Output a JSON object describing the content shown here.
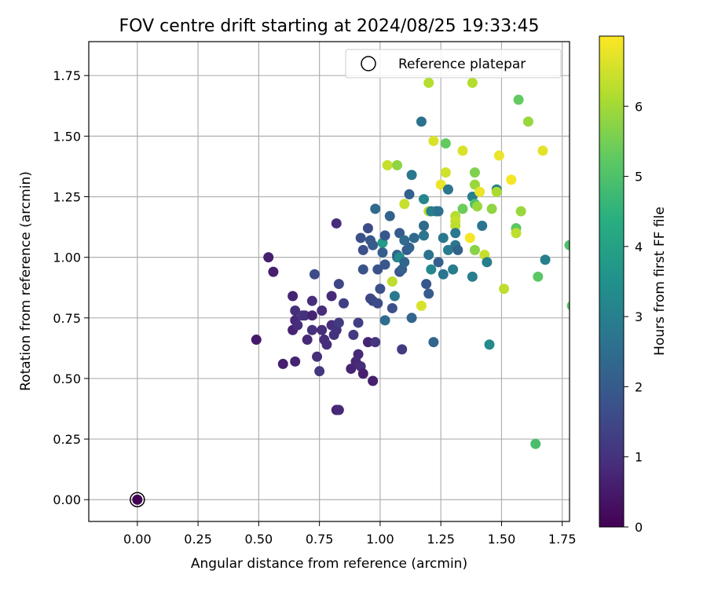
{
  "chart_data": {
    "type": "scatter",
    "title": "FOV centre drift starting at 2024/08/25 19:33:45",
    "xlabel": "Angular distance from reference (arcmin)",
    "ylabel": "Rotation from reference (arcmin)",
    "xlim": [
      -0.2,
      1.78
    ],
    "ylim": [
      -0.09,
      1.89
    ],
    "xticks": [
      "0.00",
      "0.25",
      "0.50",
      "0.75",
      "1.00",
      "1.25",
      "1.50",
      "1.75"
    ],
    "yticks": [
      "0.00",
      "0.25",
      "0.50",
      "0.75",
      "1.00",
      "1.25",
      "1.50",
      "1.75"
    ],
    "grid": true,
    "legend": {
      "placement": "top-right",
      "entries": [
        "Reference platepar"
      ]
    },
    "reference_point": {
      "x": 0.0,
      "y": 0.0
    },
    "colorbar": {
      "label": "Hours from first FF file",
      "min": 0,
      "max": 7.0,
      "ticks": [
        "0",
        "1",
        "2",
        "3",
        "4",
        "5",
        "6"
      ],
      "colormap": "viridis"
    },
    "points": [
      {
        "x": 0.49,
        "y": 0.66,
        "c": 0.5
      },
      {
        "x": 0.54,
        "y": 1.0,
        "c": 0.6
      },
      {
        "x": 0.56,
        "y": 0.94,
        "c": 0.6
      },
      {
        "x": 0.6,
        "y": 0.56,
        "c": 0.6
      },
      {
        "x": 0.64,
        "y": 0.84,
        "c": 0.7
      },
      {
        "x": 0.64,
        "y": 0.7,
        "c": 0.7
      },
      {
        "x": 0.65,
        "y": 0.57,
        "c": 0.7
      },
      {
        "x": 0.65,
        "y": 0.78,
        "c": 0.9
      },
      {
        "x": 0.65,
        "y": 0.74,
        "c": 0.8
      },
      {
        "x": 0.66,
        "y": 0.72,
        "c": 0.9
      },
      {
        "x": 0.68,
        "y": 0.76,
        "c": 1.1
      },
      {
        "x": 0.69,
        "y": 0.76,
        "c": 1.0
      },
      {
        "x": 0.7,
        "y": 0.66,
        "c": 0.8
      },
      {
        "x": 0.72,
        "y": 0.82,
        "c": 0.9
      },
      {
        "x": 0.72,
        "y": 0.7,
        "c": 1.0
      },
      {
        "x": 0.72,
        "y": 0.76,
        "c": 0.7
      },
      {
        "x": 0.73,
        "y": 0.93,
        "c": 1.6
      },
      {
        "x": 0.74,
        "y": 0.59,
        "c": 0.9
      },
      {
        "x": 0.75,
        "y": 0.53,
        "c": 1.1
      },
      {
        "x": 0.76,
        "y": 0.7,
        "c": 0.9
      },
      {
        "x": 0.76,
        "y": 0.78,
        "c": 0.9
      },
      {
        "x": 0.77,
        "y": 0.66,
        "c": 0.9
      },
      {
        "x": 0.78,
        "y": 0.64,
        "c": 0.9
      },
      {
        "x": 0.8,
        "y": 0.72,
        "c": 0.9
      },
      {
        "x": 0.8,
        "y": 0.84,
        "c": 0.8
      },
      {
        "x": 0.81,
        "y": 0.68,
        "c": 1.0
      },
      {
        "x": 0.82,
        "y": 0.37,
        "c": 0.7
      },
      {
        "x": 0.82,
        "y": 0.7,
        "c": 1.0
      },
      {
        "x": 0.82,
        "y": 1.14,
        "c": 0.9
      },
      {
        "x": 0.83,
        "y": 0.73,
        "c": 1.2
      },
      {
        "x": 0.83,
        "y": 0.37,
        "c": 0.8
      },
      {
        "x": 0.83,
        "y": 0.89,
        "c": 1.5
      },
      {
        "x": 0.85,
        "y": 0.81,
        "c": 1.3
      },
      {
        "x": 0.88,
        "y": 0.54,
        "c": 0.7
      },
      {
        "x": 0.89,
        "y": 0.68,
        "c": 1.2
      },
      {
        "x": 0.9,
        "y": 0.57,
        "c": 0.8
      },
      {
        "x": 0.91,
        "y": 0.6,
        "c": 0.8
      },
      {
        "x": 0.91,
        "y": 0.73,
        "c": 1.3
      },
      {
        "x": 0.92,
        "y": 1.08,
        "c": 1.7
      },
      {
        "x": 0.92,
        "y": 0.55,
        "c": 0.9
      },
      {
        "x": 0.93,
        "y": 0.52,
        "c": 0.6
      },
      {
        "x": 0.93,
        "y": 0.95,
        "c": 1.8
      },
      {
        "x": 0.93,
        "y": 1.03,
        "c": 1.7
      },
      {
        "x": 0.95,
        "y": 0.65,
        "c": 0.7
      },
      {
        "x": 0.95,
        "y": 1.12,
        "c": 1.6
      },
      {
        "x": 0.96,
        "y": 1.07,
        "c": 1.9
      },
      {
        "x": 0.96,
        "y": 0.83,
        "c": 1.5
      },
      {
        "x": 0.97,
        "y": 0.49,
        "c": 0.6
      },
      {
        "x": 0.97,
        "y": 1.05,
        "c": 2.0
      },
      {
        "x": 0.97,
        "y": 0.82,
        "c": 1.5
      },
      {
        "x": 0.98,
        "y": 1.2,
        "c": 2.4
      },
      {
        "x": 0.98,
        "y": 0.65,
        "c": 1.1
      },
      {
        "x": 0.99,
        "y": 0.95,
        "c": 1.8
      },
      {
        "x": 0.99,
        "y": 0.81,
        "c": 1.6
      },
      {
        "x": 1.0,
        "y": 0.87,
        "c": 1.7
      },
      {
        "x": 1.01,
        "y": 1.06,
        "c": 3.8
      },
      {
        "x": 1.01,
        "y": 1.02,
        "c": 2.1
      },
      {
        "x": 1.02,
        "y": 1.09,
        "c": 1.9
      },
      {
        "x": 1.02,
        "y": 0.74,
        "c": 2.5
      },
      {
        "x": 1.02,
        "y": 0.97,
        "c": 1.9
      },
      {
        "x": 1.03,
        "y": 1.38,
        "c": 6.4
      },
      {
        "x": 1.04,
        "y": 1.17,
        "c": 2.2
      },
      {
        "x": 1.05,
        "y": 0.9,
        "c": 6.3
      },
      {
        "x": 1.05,
        "y": 0.79,
        "c": 1.7
      },
      {
        "x": 1.06,
        "y": 0.84,
        "c": 2.8
      },
      {
        "x": 1.07,
        "y": 1.38,
        "c": 5.8
      },
      {
        "x": 1.07,
        "y": 1.0,
        "c": 2.9
      },
      {
        "x": 1.07,
        "y": 1.01,
        "c": 2.2
      },
      {
        "x": 1.08,
        "y": 1.0,
        "c": 3.4
      },
      {
        "x": 1.08,
        "y": 1.1,
        "c": 2.0
      },
      {
        "x": 1.08,
        "y": 0.94,
        "c": 1.9
      },
      {
        "x": 1.09,
        "y": 0.62,
        "c": 1.2
      },
      {
        "x": 1.09,
        "y": 0.95,
        "c": 2.1
      },
      {
        "x": 1.1,
        "y": 1.22,
        "c": 6.4
      },
      {
        "x": 1.1,
        "y": 1.07,
        "c": 2.4
      },
      {
        "x": 1.1,
        "y": 0.98,
        "c": 2.3
      },
      {
        "x": 1.11,
        "y": 1.03,
        "c": 2.0
      },
      {
        "x": 1.12,
        "y": 1.04,
        "c": 2.2
      },
      {
        "x": 1.12,
        "y": 1.26,
        "c": 2.2
      },
      {
        "x": 1.13,
        "y": 1.34,
        "c": 2.8
      },
      {
        "x": 1.13,
        "y": 0.75,
        "c": 2.3
      },
      {
        "x": 1.14,
        "y": 1.08,
        "c": 2.4
      },
      {
        "x": 1.17,
        "y": 1.56,
        "c": 2.6
      },
      {
        "x": 1.17,
        "y": 0.8,
        "c": 6.6
      },
      {
        "x": 1.18,
        "y": 1.24,
        "c": 3.2
      },
      {
        "x": 1.18,
        "y": 1.13,
        "c": 2.4
      },
      {
        "x": 1.18,
        "y": 1.09,
        "c": 2.7
      },
      {
        "x": 1.19,
        "y": 0.89,
        "c": 1.9
      },
      {
        "x": 1.2,
        "y": 1.72,
        "c": 6.2
      },
      {
        "x": 1.2,
        "y": 1.19,
        "c": 6.2
      },
      {
        "x": 1.2,
        "y": 1.01,
        "c": 2.6
      },
      {
        "x": 1.2,
        "y": 0.85,
        "c": 2.0
      },
      {
        "x": 1.21,
        "y": 0.95,
        "c": 3.2
      },
      {
        "x": 1.21,
        "y": 1.19,
        "c": 3.0
      },
      {
        "x": 1.22,
        "y": 0.65,
        "c": 2.3
      },
      {
        "x": 1.22,
        "y": 1.48,
        "c": 6.6
      },
      {
        "x": 1.23,
        "y": 1.19,
        "c": 2.9
      },
      {
        "x": 1.24,
        "y": 0.98,
        "c": 2.1
      },
      {
        "x": 1.24,
        "y": 1.19,
        "c": 2.6
      },
      {
        "x": 1.25,
        "y": 1.3,
        "c": 6.8
      },
      {
        "x": 1.26,
        "y": 0.93,
        "c": 2.7
      },
      {
        "x": 1.26,
        "y": 1.08,
        "c": 2.8
      },
      {
        "x": 1.27,
        "y": 1.47,
        "c": 5.3
      },
      {
        "x": 1.27,
        "y": 1.35,
        "c": 6.5
      },
      {
        "x": 1.28,
        "y": 1.28,
        "c": 2.7
      },
      {
        "x": 1.28,
        "y": 1.03,
        "c": 2.9
      },
      {
        "x": 1.3,
        "y": 0.95,
        "c": 2.9
      },
      {
        "x": 1.31,
        "y": 1.05,
        "c": 2.7
      },
      {
        "x": 1.31,
        "y": 1.17,
        "c": 6.2
      },
      {
        "x": 1.31,
        "y": 1.15,
        "c": 6.4
      },
      {
        "x": 1.31,
        "y": 1.13,
        "c": 6.3
      },
      {
        "x": 1.31,
        "y": 1.1,
        "c": 2.8
      },
      {
        "x": 1.32,
        "y": 1.03,
        "c": 2.2
      },
      {
        "x": 1.34,
        "y": 1.44,
        "c": 6.6
      },
      {
        "x": 1.34,
        "y": 1.2,
        "c": 5.4
      },
      {
        "x": 1.37,
        "y": 1.08,
        "c": 6.9
      },
      {
        "x": 1.38,
        "y": 1.72,
        "c": 6.2
      },
      {
        "x": 1.38,
        "y": 0.92,
        "c": 3.0
      },
      {
        "x": 1.38,
        "y": 1.25,
        "c": 3.0
      },
      {
        "x": 1.39,
        "y": 1.35,
        "c": 5.6
      },
      {
        "x": 1.39,
        "y": 1.3,
        "c": 5.9
      },
      {
        "x": 1.39,
        "y": 1.22,
        "c": 5.0
      },
      {
        "x": 1.39,
        "y": 1.03,
        "c": 5.7
      },
      {
        "x": 1.4,
        "y": 1.21,
        "c": 5.9
      },
      {
        "x": 1.41,
        "y": 1.27,
        "c": 6.8
      },
      {
        "x": 1.42,
        "y": 1.13,
        "c": 2.7
      },
      {
        "x": 1.43,
        "y": 1.01,
        "c": 6.4
      },
      {
        "x": 1.44,
        "y": 0.98,
        "c": 3.0
      },
      {
        "x": 1.45,
        "y": 0.64,
        "c": 3.3
      },
      {
        "x": 1.46,
        "y": 1.2,
        "c": 5.8
      },
      {
        "x": 1.48,
        "y": 1.28,
        "c": 3.1
      },
      {
        "x": 1.48,
        "y": 1.27,
        "c": 6.1
      },
      {
        "x": 1.49,
        "y": 1.42,
        "c": 6.8
      },
      {
        "x": 1.51,
        "y": 0.87,
        "c": 6.3
      },
      {
        "x": 1.54,
        "y": 1.32,
        "c": 6.9
      },
      {
        "x": 1.56,
        "y": 1.12,
        "c": 5.2
      },
      {
        "x": 1.56,
        "y": 1.1,
        "c": 6.3
      },
      {
        "x": 1.57,
        "y": 1.65,
        "c": 5.3
      },
      {
        "x": 1.58,
        "y": 1.19,
        "c": 5.9
      },
      {
        "x": 1.61,
        "y": 1.56,
        "c": 5.9
      },
      {
        "x": 1.64,
        "y": 0.23,
        "c": 4.9
      },
      {
        "x": 1.65,
        "y": 0.92,
        "c": 5.2
      },
      {
        "x": 1.67,
        "y": 1.44,
        "c": 6.7
      },
      {
        "x": 1.68,
        "y": 0.99,
        "c": 3.0
      },
      {
        "x": 1.78,
        "y": 1.05,
        "c": 5.0
      },
      {
        "x": 1.79,
        "y": 0.8,
        "c": 5.2
      }
    ]
  }
}
